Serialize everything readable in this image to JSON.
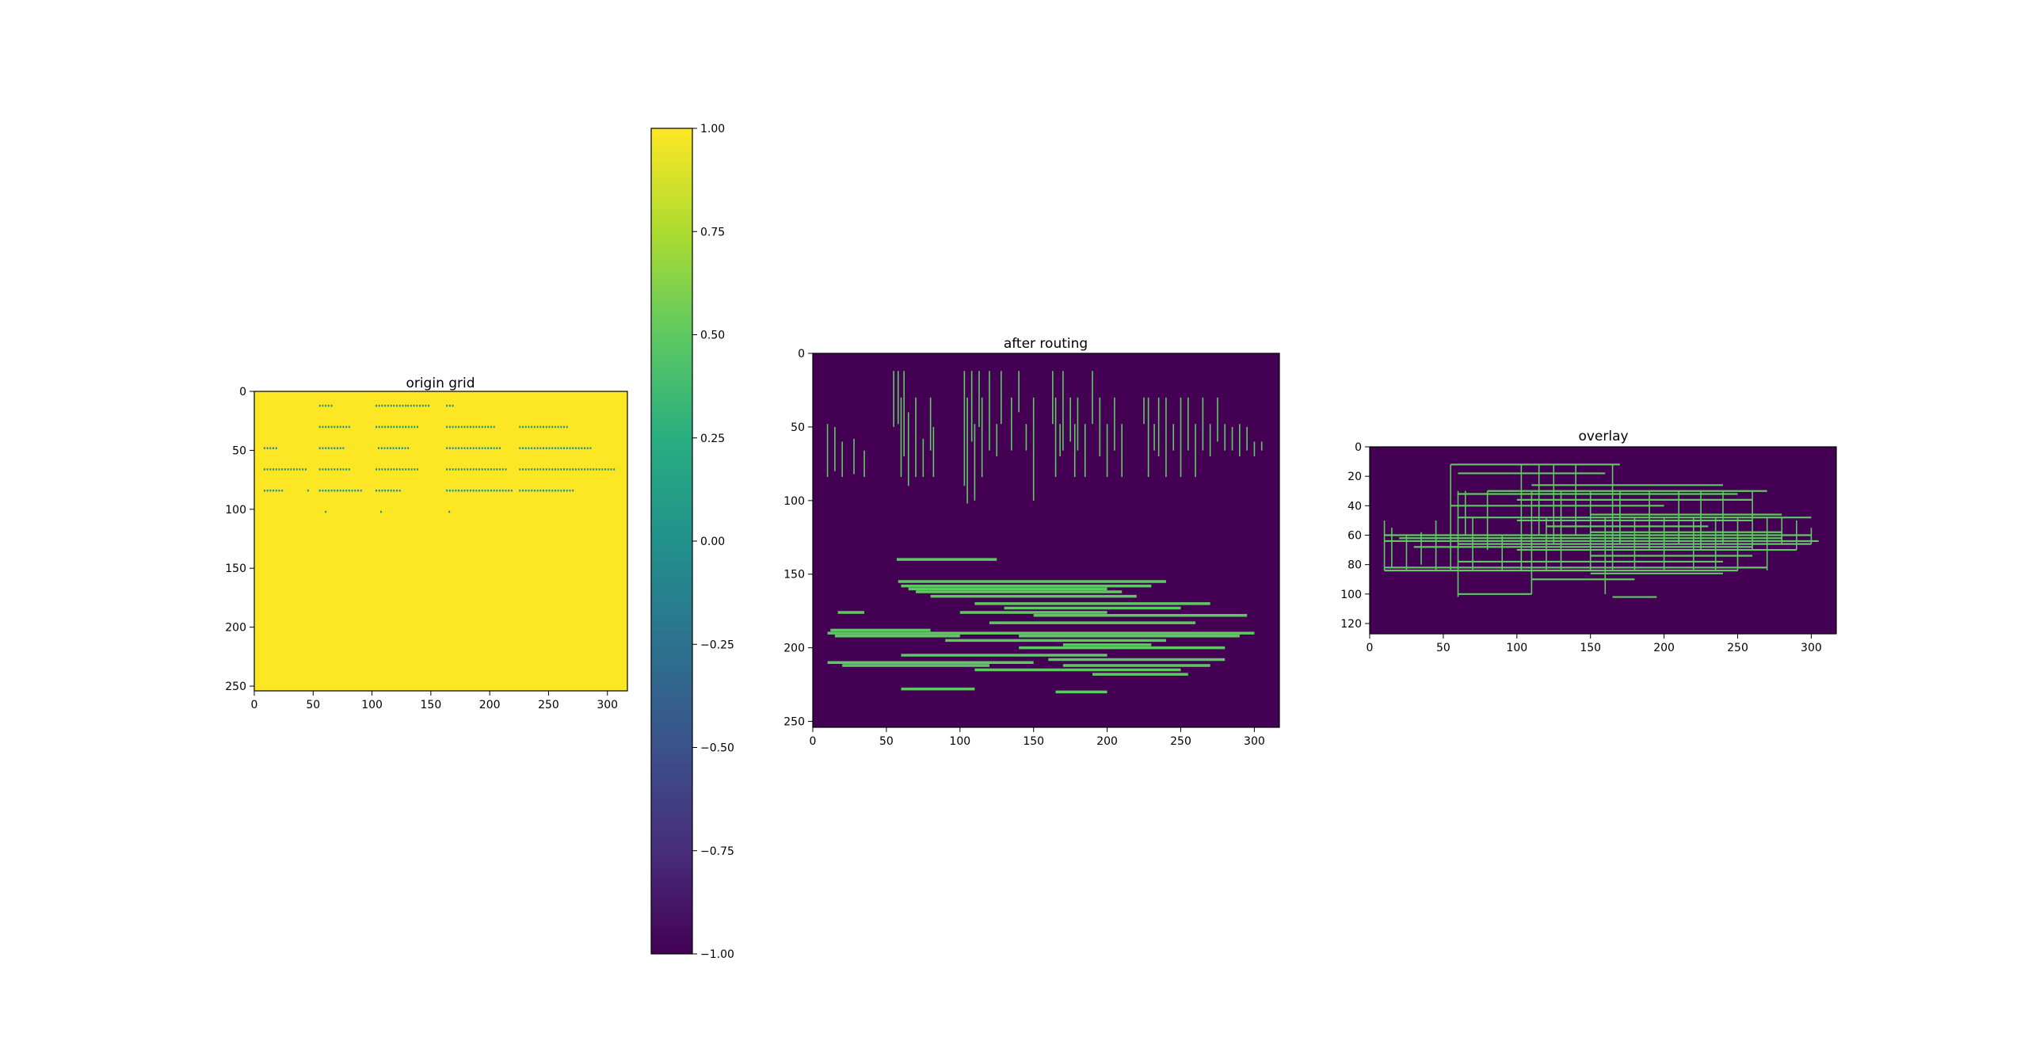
{
  "chart_data": [
    {
      "type": "heatmap",
      "title": "origin grid",
      "xlabel": "",
      "ylabel": "",
      "xlim": [
        0,
        317
      ],
      "ylim": [
        254,
        0
      ],
      "xticks": [
        0,
        50,
        100,
        150,
        200,
        250,
        300
      ],
      "yticks": [
        0,
        50,
        100,
        150,
        200,
        250
      ],
      "background_value": 1.0,
      "marker_value": 0.0,
      "marker_rows": [
        12,
        30,
        48,
        66,
        84
      ],
      "marker_col_groups": [
        [
          [
            55,
            65
          ],
          [
            103,
            128
          ],
          [
            130,
            148
          ],
          [
            163,
            170
          ]
        ],
        [
          [
            55,
            82
          ],
          [
            103,
            140
          ],
          [
            163,
            205
          ],
          [
            225,
            265
          ]
        ],
        [
          [
            8,
            18
          ],
          [
            55,
            75
          ],
          [
            105,
            130
          ],
          [
            163,
            210
          ],
          [
            225,
            285
          ]
        ],
        [
          [
            8,
            45
          ],
          [
            55,
            80
          ],
          [
            103,
            140
          ],
          [
            163,
            215
          ],
          [
            225,
            305
          ]
        ],
        [
          [
            8,
            25
          ],
          [
            55,
            90
          ],
          [
            103,
            125
          ],
          [
            163,
            220
          ],
          [
            225,
            270
          ]
        ]
      ],
      "extra_markers": [
        [
          60,
          102
        ],
        [
          107,
          102
        ],
        [
          165,
          102
        ],
        [
          45,
          84
        ]
      ]
    },
    {
      "type": "colorbar",
      "cmap": "viridis",
      "range": [
        -1.0,
        1.0
      ],
      "tick_labels": [
        "1.00",
        "0.75",
        "0.50",
        "0.25",
        "0.00",
        "−0.25",
        "−0.50",
        "−0.75",
        "−1.00"
      ],
      "tick_values": [
        1.0,
        0.75,
        0.5,
        0.25,
        0.0,
        -0.25,
        -0.5,
        -0.75,
        -1.0
      ]
    },
    {
      "type": "heatmap",
      "title": "after routing",
      "xlabel": "",
      "ylabel": "",
      "xlim": [
        0,
        317
      ],
      "ylim": [
        254,
        0
      ],
      "xticks": [
        0,
        50,
        100,
        150,
        200,
        250,
        300
      ],
      "yticks": [
        0,
        50,
        100,
        150,
        200,
        250
      ],
      "background_value": -1.0,
      "route_value": 0.5,
      "vertical_segments": [
        [
          10,
          48,
          84
        ],
        [
          15,
          50,
          80
        ],
        [
          20,
          60,
          84
        ],
        [
          28,
          58,
          82
        ],
        [
          35,
          66,
          84
        ],
        [
          55,
          12,
          50
        ],
        [
          58,
          12,
          48
        ],
        [
          60,
          30,
          84
        ],
        [
          62,
          12,
          70
        ],
        [
          65,
          40,
          90
        ],
        [
          70,
          30,
          84
        ],
        [
          75,
          58,
          84
        ],
        [
          80,
          30,
          66
        ],
        [
          82,
          50,
          84
        ],
        [
          103,
          12,
          90
        ],
        [
          105,
          30,
          102
        ],
        [
          108,
          12,
          60
        ],
        [
          110,
          48,
          100
        ],
        [
          113,
          12,
          50
        ],
        [
          115,
          30,
          84
        ],
        [
          120,
          12,
          66
        ],
        [
          125,
          48,
          70
        ],
        [
          128,
          12,
          48
        ],
        [
          135,
          30,
          66
        ],
        [
          140,
          12,
          40
        ],
        [
          145,
          48,
          66
        ],
        [
          163,
          12,
          48
        ],
        [
          165,
          30,
          84
        ],
        [
          168,
          48,
          70
        ],
        [
          170,
          12,
          66
        ],
        [
          175,
          30,
          60
        ],
        [
          178,
          48,
          84
        ],
        [
          180,
          30,
          66
        ],
        [
          185,
          48,
          84
        ],
        [
          190,
          12,
          48
        ],
        [
          195,
          30,
          70
        ],
        [
          200,
          48,
          84
        ],
        [
          205,
          30,
          66
        ],
        [
          210,
          48,
          84
        ],
        [
          225,
          30,
          48
        ],
        [
          228,
          30,
          84
        ],
        [
          232,
          48,
          66
        ],
        [
          235,
          30,
          70
        ],
        [
          240,
          30,
          84
        ],
        [
          245,
          48,
          66
        ],
        [
          250,
          30,
          84
        ],
        [
          255,
          30,
          66
        ],
        [
          260,
          48,
          84
        ],
        [
          265,
          30,
          66
        ],
        [
          270,
          48,
          70
        ],
        [
          275,
          30,
          60
        ],
        [
          280,
          48,
          66
        ],
        [
          285,
          50,
          66
        ],
        [
          290,
          48,
          70
        ],
        [
          295,
          50,
          66
        ],
        [
          300,
          60,
          70
        ],
        [
          305,
          60,
          66
        ],
        [
          150,
          30,
          100
        ]
      ],
      "horizontal_segments": [
        [
          140,
          57,
          125
        ],
        [
          155,
          58,
          240
        ],
        [
          158,
          60,
          230
        ],
        [
          160,
          65,
          200
        ],
        [
          162,
          70,
          210
        ],
        [
          165,
          80,
          220
        ],
        [
          170,
          110,
          270
        ],
        [
          173,
          130,
          250
        ],
        [
          176,
          17,
          35
        ],
        [
          176,
          100,
          200
        ],
        [
          178,
          150,
          295
        ],
        [
          183,
          120,
          260
        ],
        [
          188,
          12,
          80
        ],
        [
          190,
          10,
          300
        ],
        [
          192,
          15,
          100
        ],
        [
          192,
          140,
          290
        ],
        [
          195,
          90,
          240
        ],
        [
          198,
          170,
          230
        ],
        [
          200,
          140,
          280
        ],
        [
          205,
          60,
          200
        ],
        [
          208,
          160,
          280
        ],
        [
          210,
          10,
          150
        ],
        [
          212,
          20,
          120
        ],
        [
          212,
          170,
          270
        ],
        [
          215,
          110,
          250
        ],
        [
          218,
          190,
          255
        ],
        [
          228,
          60,
          110
        ],
        [
          230,
          165,
          200
        ]
      ]
    },
    {
      "type": "heatmap",
      "title": "overlay",
      "xlabel": "",
      "ylabel": "",
      "xlim": [
        0,
        317
      ],
      "ylim": [
        127,
        0
      ],
      "xticks": [
        0,
        50,
        100,
        150,
        200,
        250,
        300
      ],
      "yticks": [
        0,
        20,
        40,
        60,
        80,
        100,
        120
      ],
      "background_value": -1.0,
      "route_value": 0.5,
      "vertical_segments": [
        [
          10,
          50,
          84
        ],
        [
          15,
          55,
          82
        ],
        [
          25,
          60,
          84
        ],
        [
          35,
          58,
          80
        ],
        [
          45,
          50,
          84
        ],
        [
          55,
          12,
          84
        ],
        [
          60,
          30,
          102
        ],
        [
          65,
          30,
          60
        ],
        [
          70,
          48,
          84
        ],
        [
          80,
          30,
          70
        ],
        [
          90,
          60,
          84
        ],
        [
          103,
          12,
          84
        ],
        [
          110,
          30,
          100
        ],
        [
          115,
          12,
          60
        ],
        [
          120,
          48,
          84
        ],
        [
          125,
          12,
          66
        ],
        [
          130,
          30,
          84
        ],
        [
          140,
          12,
          60
        ],
        [
          150,
          30,
          84
        ],
        [
          160,
          48,
          100
        ],
        [
          165,
          12,
          84
        ],
        [
          170,
          30,
          66
        ],
        [
          180,
          48,
          84
        ],
        [
          190,
          30,
          70
        ],
        [
          200,
          48,
          84
        ],
        [
          210,
          30,
          66
        ],
        [
          220,
          48,
          84
        ],
        [
          225,
          30,
          70
        ],
        [
          235,
          48,
          84
        ],
        [
          240,
          30,
          66
        ],
        [
          250,
          48,
          84
        ],
        [
          260,
          30,
          70
        ],
        [
          270,
          48,
          84
        ],
        [
          280,
          48,
          66
        ],
        [
          290,
          50,
          70
        ],
        [
          300,
          55,
          66
        ]
      ],
      "horizontal_segments": [
        [
          12,
          55,
          170
        ],
        [
          18,
          60,
          160
        ],
        [
          26,
          110,
          240
        ],
        [
          30,
          80,
          270
        ],
        [
          32,
          60,
          250
        ],
        [
          36,
          100,
          260
        ],
        [
          40,
          55,
          200
        ],
        [
          46,
          150,
          280
        ],
        [
          48,
          60,
          300
        ],
        [
          50,
          100,
          260
        ],
        [
          54,
          120,
          230
        ],
        [
          58,
          150,
          280
        ],
        [
          60,
          10,
          300
        ],
        [
          62,
          20,
          280
        ],
        [
          64,
          10,
          305
        ],
        [
          66,
          60,
          300
        ],
        [
          68,
          30,
          260
        ],
        [
          70,
          100,
          290
        ],
        [
          74,
          150,
          260
        ],
        [
          78,
          60,
          240
        ],
        [
          82,
          10,
          270
        ],
        [
          84,
          10,
          250
        ],
        [
          86,
          150,
          240
        ],
        [
          90,
          110,
          180
        ],
        [
          100,
          60,
          110
        ],
        [
          102,
          165,
          195
        ]
      ]
    }
  ]
}
